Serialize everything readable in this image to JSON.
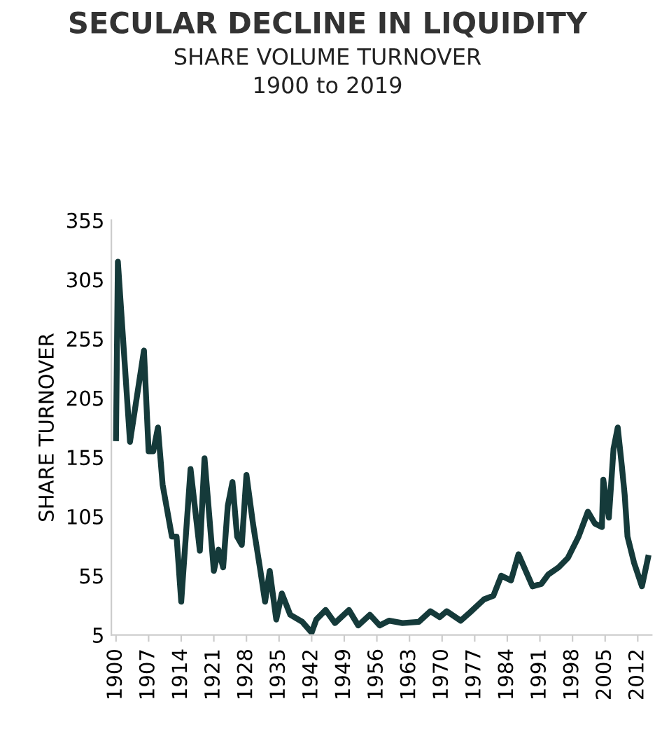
{
  "chart_data": {
    "type": "line",
    "title": "SECULAR DECLINE IN LIQUIDITY",
    "subtitle": "SHARE VOLUME TURNOVER\n1900 to 2019",
    "ylabel": "SHARE TURNOVER",
    "x": [
      1900,
      1900.4,
      1903,
      1906,
      1907,
      1908,
      1909,
      1910,
      1912,
      1913,
      1914,
      1916,
      1918,
      1919,
      1921,
      1922,
      1923,
      1924,
      1925,
      1926,
      1927,
      1928,
      1929.4,
      1931,
      1932,
      1933,
      1934.4,
      1935.6,
      1937.4,
      1940,
      1942,
      1943,
      1945,
      1947,
      1950,
      1952,
      1954.5,
      1956.6,
      1958.6,
      1961.5,
      1965,
      1967.5,
      1969.5,
      1971,
      1974,
      1976,
      1979,
      1981,
      1982.7,
      1984.8,
      1986.4,
      1989.4,
      1991.3,
      1992.8,
      1995,
      1997,
      1999.3,
      2001.3,
      2002.8,
      2004.3,
      2004.6,
      2005.8,
      2006.8,
      2007.7,
      2008.6,
      2009.2,
      2009.8,
      2011.2,
      2012.9,
      2014.2
    ],
    "series": [
      {
        "color": "#153a3a",
        "values": [
          171,
          320,
          168,
          245,
          160,
          160,
          180,
          132,
          88,
          88,
          33,
          145,
          76,
          154,
          59,
          77,
          62,
          114,
          134,
          88,
          81,
          140,
          99,
          59,
          33,
          59,
          18,
          40,
          22,
          16,
          7,
          18,
          26,
          15,
          26,
          13,
          22,
          13,
          17,
          15,
          16,
          25,
          20,
          25,
          17,
          24,
          35,
          38,
          55,
          51,
          73,
          46,
          48,
          56,
          62,
          70,
          88,
          109,
          99,
          96,
          136,
          104,
          162,
          180,
          147,
          123,
          88,
          66,
          46,
          70
        ]
      }
    ],
    "xlim": [
      1899,
      2015
    ],
    "xticks": [
      1900,
      1907,
      1914,
      1921,
      1928,
      1935,
      1942,
      1949,
      1956,
      1963,
      1970,
      1977,
      1984,
      1991,
      1998,
      2005,
      2012
    ],
    "ylim": [
      5,
      355
    ],
    "yticks": [
      5,
      55,
      105,
      155,
      205,
      255,
      305,
      355
    ],
    "grid": false,
    "legend": false,
    "marker": "none",
    "line_style": "solid"
  }
}
